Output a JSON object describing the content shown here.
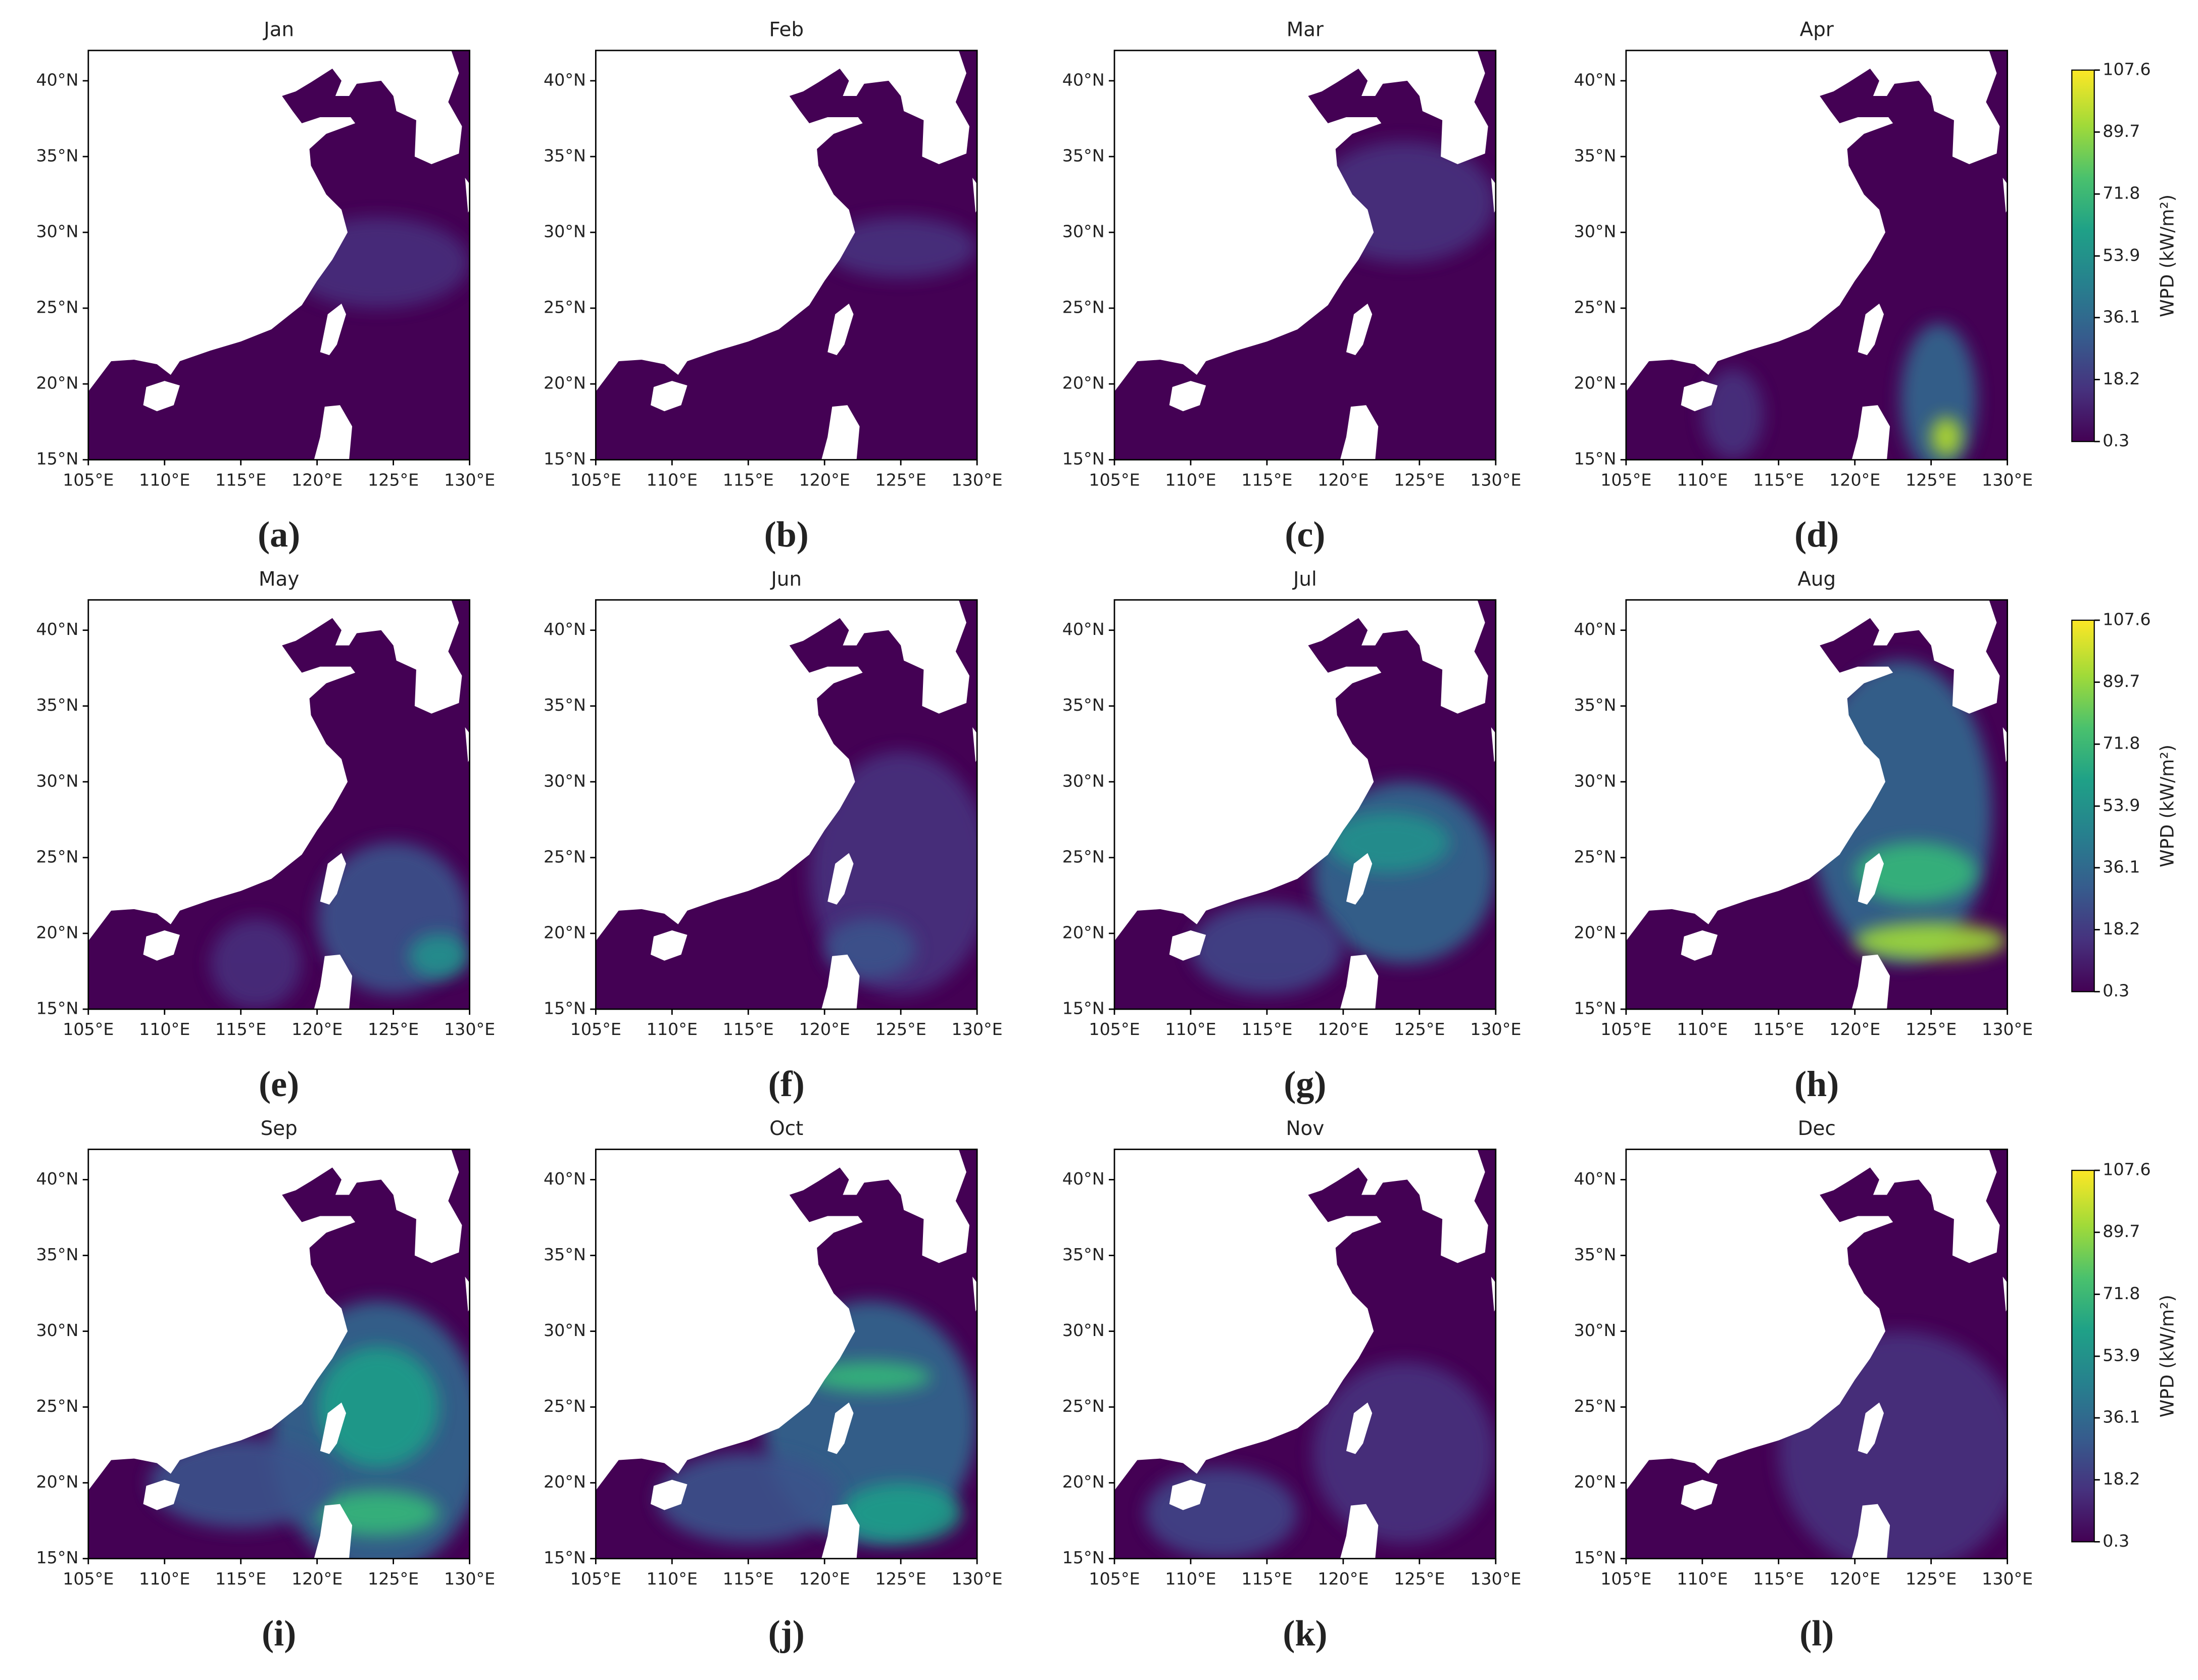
{
  "chart_data": [
    {
      "type": "map",
      "title": "Jan",
      "label": "(a)",
      "xlim": [
        105,
        130
      ],
      "ylim": [
        15,
        42
      ],
      "xticks": [
        {
          "value": 105,
          "label": "105°E"
        },
        {
          "value": 110,
          "label": "110°E"
        },
        {
          "value": 115,
          "label": "115°E"
        },
        {
          "value": 120,
          "label": "120°E"
        },
        {
          "value": 125,
          "label": "125°E"
        },
        {
          "value": 130,
          "label": "130°E"
        }
      ],
      "yticks": [
        {
          "value": 15,
          "label": "15°N"
        },
        {
          "value": 20,
          "label": "20°N"
        },
        {
          "value": 25,
          "label": "25°N"
        },
        {
          "value": 30,
          "label": "30°N"
        },
        {
          "value": 35,
          "label": "35°N"
        },
        {
          "value": 40,
          "label": "40°N"
        }
      ]
    },
    {
      "type": "map",
      "title": "Feb",
      "label": "(b)",
      "xlim": [
        105,
        130
      ],
      "ylim": [
        15,
        42
      ],
      "xticks": [
        {
          "value": 105,
          "label": "105°E"
        },
        {
          "value": 110,
          "label": "110°E"
        },
        {
          "value": 115,
          "label": "115°E"
        },
        {
          "value": 120,
          "label": "120°E"
        },
        {
          "value": 125,
          "label": "125°E"
        },
        {
          "value": 130,
          "label": "130°E"
        }
      ],
      "yticks": [
        {
          "value": 15,
          "label": "15°N"
        },
        {
          "value": 20,
          "label": "20°N"
        },
        {
          "value": 25,
          "label": "25°N"
        },
        {
          "value": 30,
          "label": "30°N"
        },
        {
          "value": 35,
          "label": "35°N"
        },
        {
          "value": 40,
          "label": "40°N"
        }
      ]
    },
    {
      "type": "map",
      "title": "Mar",
      "label": "(c)",
      "xlim": [
        105,
        130
      ],
      "ylim": [
        15,
        42
      ],
      "xticks": [
        {
          "value": 105,
          "label": "105°E"
        },
        {
          "value": 110,
          "label": "110°E"
        },
        {
          "value": 115,
          "label": "115°E"
        },
        {
          "value": 120,
          "label": "120°E"
        },
        {
          "value": 125,
          "label": "125°E"
        },
        {
          "value": 130,
          "label": "130°E"
        }
      ],
      "yticks": [
        {
          "value": 15,
          "label": "15°N"
        },
        {
          "value": 20,
          "label": "20°N"
        },
        {
          "value": 25,
          "label": "25°N"
        },
        {
          "value": 30,
          "label": "30°N"
        },
        {
          "value": 35,
          "label": "35°N"
        },
        {
          "value": 40,
          "label": "40°N"
        }
      ]
    },
    {
      "type": "map",
      "title": "Apr",
      "label": "(d)",
      "xlim": [
        105,
        130
      ],
      "ylim": [
        15,
        42
      ],
      "xticks": [
        {
          "value": 105,
          "label": "105°E"
        },
        {
          "value": 110,
          "label": "110°E"
        },
        {
          "value": 115,
          "label": "115°E"
        },
        {
          "value": 120,
          "label": "120°E"
        },
        {
          "value": 125,
          "label": "125°E"
        },
        {
          "value": 130,
          "label": "130°E"
        }
      ],
      "yticks": [
        {
          "value": 15,
          "label": "15°N"
        },
        {
          "value": 20,
          "label": "20°N"
        },
        {
          "value": 25,
          "label": "25°N"
        },
        {
          "value": 30,
          "label": "30°N"
        },
        {
          "value": 35,
          "label": "35°N"
        },
        {
          "value": 40,
          "label": "40°N"
        }
      ]
    },
    {
      "type": "map",
      "title": "May",
      "label": "(e)",
      "xlim": [
        105,
        130
      ],
      "ylim": [
        15,
        42
      ],
      "xticks": [
        {
          "value": 105,
          "label": "105°E"
        },
        {
          "value": 110,
          "label": "110°E"
        },
        {
          "value": 115,
          "label": "115°E"
        },
        {
          "value": 120,
          "label": "120°E"
        },
        {
          "value": 125,
          "label": "125°E"
        },
        {
          "value": 130,
          "label": "130°E"
        }
      ],
      "yticks": [
        {
          "value": 15,
          "label": "15°N"
        },
        {
          "value": 20,
          "label": "20°N"
        },
        {
          "value": 25,
          "label": "25°N"
        },
        {
          "value": 30,
          "label": "30°N"
        },
        {
          "value": 35,
          "label": "35°N"
        },
        {
          "value": 40,
          "label": "40°N"
        }
      ]
    },
    {
      "type": "map",
      "title": "Jun",
      "label": "(f)",
      "xlim": [
        105,
        130
      ],
      "ylim": [
        15,
        42
      ],
      "xticks": [
        {
          "value": 105,
          "label": "105°E"
        },
        {
          "value": 110,
          "label": "110°E"
        },
        {
          "value": 115,
          "label": "115°E"
        },
        {
          "value": 120,
          "label": "120°E"
        },
        {
          "value": 125,
          "label": "125°E"
        },
        {
          "value": 130,
          "label": "130°E"
        }
      ],
      "yticks": [
        {
          "value": 15,
          "label": "15°N"
        },
        {
          "value": 20,
          "label": "20°N"
        },
        {
          "value": 25,
          "label": "25°N"
        },
        {
          "value": 30,
          "label": "30°N"
        },
        {
          "value": 35,
          "label": "35°N"
        },
        {
          "value": 40,
          "label": "40°N"
        }
      ]
    },
    {
      "type": "map",
      "title": "Jul",
      "label": "(g)",
      "xlim": [
        105,
        130
      ],
      "ylim": [
        15,
        42
      ],
      "xticks": [
        {
          "value": 105,
          "label": "105°E"
        },
        {
          "value": 110,
          "label": "110°E"
        },
        {
          "value": 115,
          "label": "115°E"
        },
        {
          "value": 120,
          "label": "120°E"
        },
        {
          "value": 125,
          "label": "125°E"
        },
        {
          "value": 130,
          "label": "130°E"
        }
      ],
      "yticks": [
        {
          "value": 15,
          "label": "15°N"
        },
        {
          "value": 20,
          "label": "20°N"
        },
        {
          "value": 25,
          "label": "25°N"
        },
        {
          "value": 30,
          "label": "30°N"
        },
        {
          "value": 35,
          "label": "35°N"
        },
        {
          "value": 40,
          "label": "40°N"
        }
      ]
    },
    {
      "type": "map",
      "title": "Aug",
      "label": "(h)",
      "xlim": [
        105,
        130
      ],
      "ylim": [
        15,
        42
      ],
      "xticks": [
        {
          "value": 105,
          "label": "105°E"
        },
        {
          "value": 110,
          "label": "110°E"
        },
        {
          "value": 115,
          "label": "115°E"
        },
        {
          "value": 120,
          "label": "120°E"
        },
        {
          "value": 125,
          "label": "125°E"
        },
        {
          "value": 130,
          "label": "130°E"
        }
      ],
      "yticks": [
        {
          "value": 15,
          "label": "15°N"
        },
        {
          "value": 20,
          "label": "20°N"
        },
        {
          "value": 25,
          "label": "25°N"
        },
        {
          "value": 30,
          "label": "30°N"
        },
        {
          "value": 35,
          "label": "35°N"
        },
        {
          "value": 40,
          "label": "40°N"
        }
      ]
    },
    {
      "type": "map",
      "title": "Sep",
      "label": "(i)",
      "xlim": [
        105,
        130
      ],
      "ylim": [
        15,
        42
      ],
      "xticks": [
        {
          "value": 105,
          "label": "105°E"
        },
        {
          "value": 110,
          "label": "110°E"
        },
        {
          "value": 115,
          "label": "115°E"
        },
        {
          "value": 120,
          "label": "120°E"
        },
        {
          "value": 125,
          "label": "125°E"
        },
        {
          "value": 130,
          "label": "130°E"
        }
      ],
      "yticks": [
        {
          "value": 15,
          "label": "15°N"
        },
        {
          "value": 20,
          "label": "20°N"
        },
        {
          "value": 25,
          "label": "25°N"
        },
        {
          "value": 30,
          "label": "30°N"
        },
        {
          "value": 35,
          "label": "35°N"
        },
        {
          "value": 40,
          "label": "40°N"
        }
      ]
    },
    {
      "type": "map",
      "title": "Oct",
      "label": "(j)",
      "xlim": [
        105,
        130
      ],
      "ylim": [
        15,
        42
      ],
      "xticks": [
        {
          "value": 105,
          "label": "105°E"
        },
        {
          "value": 110,
          "label": "110°E"
        },
        {
          "value": 115,
          "label": "115°E"
        },
        {
          "value": 120,
          "label": "120°E"
        },
        {
          "value": 125,
          "label": "125°E"
        },
        {
          "value": 130,
          "label": "130°E"
        }
      ],
      "yticks": [
        {
          "value": 15,
          "label": "15°N"
        },
        {
          "value": 20,
          "label": "20°N"
        },
        {
          "value": 25,
          "label": "25°N"
        },
        {
          "value": 30,
          "label": "30°N"
        },
        {
          "value": 35,
          "label": "35°N"
        },
        {
          "value": 40,
          "label": "40°N"
        }
      ]
    },
    {
      "type": "map",
      "title": "Nov",
      "label": "(k)",
      "xlim": [
        105,
        130
      ],
      "ylim": [
        15,
        42
      ],
      "xticks": [
        {
          "value": 105,
          "label": "105°E"
        },
        {
          "value": 110,
          "label": "110°E"
        },
        {
          "value": 115,
          "label": "115°E"
        },
        {
          "value": 120,
          "label": "120°E"
        },
        {
          "value": 125,
          "label": "125°E"
        },
        {
          "value": 130,
          "label": "130°E"
        }
      ],
      "yticks": [
        {
          "value": 15,
          "label": "15°N"
        },
        {
          "value": 20,
          "label": "20°N"
        },
        {
          "value": 25,
          "label": "25°N"
        },
        {
          "value": 30,
          "label": "30°N"
        },
        {
          "value": 35,
          "label": "35°N"
        },
        {
          "value": 40,
          "label": "40°N"
        }
      ]
    },
    {
      "type": "map",
      "title": "Dec",
      "label": "(l)",
      "xlim": [
        105,
        130
      ],
      "ylim": [
        15,
        42
      ],
      "xticks": [
        {
          "value": 105,
          "label": "105°E"
        },
        {
          "value": 110,
          "label": "110°E"
        },
        {
          "value": 115,
          "label": "115°E"
        },
        {
          "value": 120,
          "label": "120°E"
        },
        {
          "value": 125,
          "label": "125°E"
        },
        {
          "value": 130,
          "label": "130°E"
        }
      ],
      "yticks": [
        {
          "value": 15,
          "label": "15°N"
        },
        {
          "value": 20,
          "label": "20°N"
        },
        {
          "value": 25,
          "label": "25°N"
        },
        {
          "value": 30,
          "label": "30°N"
        },
        {
          "value": 35,
          "label": "35°N"
        },
        {
          "value": 40,
          "label": "40°N"
        }
      ]
    }
  ],
  "colorbars": [
    {
      "label": "WPD (kW/m²)",
      "lim": [
        0.3,
        107.6
      ],
      "ticks": [
        0.3,
        18.2,
        36.1,
        53.9,
        71.8,
        89.7,
        107.6
      ]
    },
    {
      "label": "WPD (kW/m²)",
      "lim": [
        0.3,
        107.6
      ],
      "ticks": [
        0.3,
        18.2,
        36.1,
        53.9,
        71.8,
        89.7,
        107.6
      ]
    },
    {
      "label": "WPD (kW/m²)",
      "lim": [
        0.3,
        107.6
      ],
      "ticks": [
        0.3,
        18.2,
        36.1,
        53.9,
        71.8,
        89.7,
        107.6
      ]
    }
  ]
}
